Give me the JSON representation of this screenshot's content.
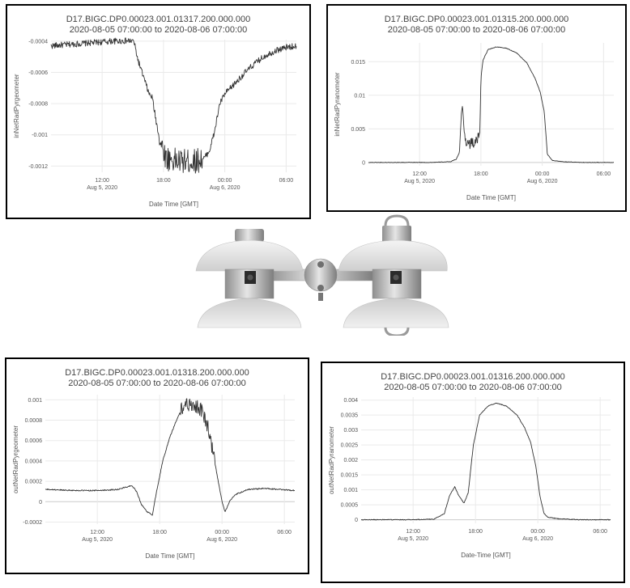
{
  "chart_data": [
    {
      "id": "a",
      "type": "line",
      "title": "D17.BIGC.DP0.00023.001.01317.200.000.000",
      "subtitle": "2020-08-05 07:00:00 to 2020-08-06 07:00:00",
      "xlabel": "Date Time [GMT]",
      "ylabel": "inNetRadPyrgeometer",
      "xlim": [
        7,
        31
      ],
      "ylim": [
        -0.00124,
        -0.00039
      ],
      "grid": true,
      "noise": 2e-05,
      "bigNoise": [
        [
          17.6,
          21.8,
          8e-05
        ]
      ],
      "x_ticks": [
        {
          "v": 12,
          "l1": "12:00",
          "l2": "Aug 5, 2020"
        },
        {
          "v": 18,
          "l1": "18:00",
          "l2": ""
        },
        {
          "v": 24,
          "l1": "00:00",
          "l2": "Aug 6, 2020"
        },
        {
          "v": 30,
          "l1": "06:00",
          "l2": ""
        }
      ],
      "y_ticks": [
        {
          "v": -0.0004,
          "l": "-0.0004"
        },
        {
          "v": -0.0006,
          "l": "-0.0006"
        },
        {
          "v": -0.0008,
          "l": "-0.0008"
        },
        {
          "v": -0.001,
          "l": "-0.001"
        },
        {
          "v": -0.0012,
          "l": "-0.0012"
        }
      ],
      "series": [
        {
          "x": [
            7,
            9,
            11,
            13,
            14.5,
            15.1,
            15.5,
            16,
            16.6,
            16.9,
            17.3,
            17.7,
            18.3,
            19.5,
            21,
            22,
            22.5,
            23,
            23.5,
            24,
            25,
            26,
            27,
            28,
            29,
            30,
            31
          ],
          "y": [
            -0.00043,
            -0.00042,
            -0.00041,
            -0.0004,
            -0.000398,
            -0.0004,
            -0.00052,
            -0.00062,
            -0.00074,
            -0.00076,
            -0.00092,
            -0.00105,
            -0.00115,
            -0.00117,
            -0.00117,
            -0.00115,
            -0.0011,
            -0.00098,
            -0.0008,
            -0.00074,
            -0.00067,
            -0.0006,
            -0.00054,
            -0.00049,
            -0.00046,
            -0.00044,
            -0.00043
          ]
        }
      ]
    },
    {
      "id": "b",
      "type": "line",
      "title": "D17.BIGC.DP0.00023.001.01315.200.000.000",
      "subtitle": "2020-08-05 07:00:00 to 2020-08-06 07:00:00",
      "xlabel": "Date Time [GMT]",
      "ylabel": "inNetRadPyranometer",
      "xlim": [
        7,
        31
      ],
      "ylim": [
        -0.0005,
        0.0178
      ],
      "grid": true,
      "noise": 4e-05,
      "bigNoise": [
        [
          16.3,
          17.8,
          0.0008
        ]
      ],
      "x_ticks": [
        {
          "v": 12,
          "l1": "12:00",
          "l2": "Aug 5, 2020"
        },
        {
          "v": 18,
          "l1": "18:00",
          "l2": ""
        },
        {
          "v": 24,
          "l1": "00:00",
          "l2": "Aug 6, 2020"
        },
        {
          "v": 30,
          "l1": "06:00",
          "l2": ""
        }
      ],
      "y_ticks": [
        {
          "v": 0,
          "l": "0"
        },
        {
          "v": 0.005,
          "l": "0.005"
        },
        {
          "v": 0.01,
          "l": "0.01"
        },
        {
          "v": 0.015,
          "l": "0.015"
        }
      ],
      "series": [
        {
          "x": [
            7,
            13,
            15,
            15.6,
            15.9,
            16.1,
            16.2,
            16.4,
            16.6,
            17,
            17.5,
            17.7,
            17.9,
            18,
            18.2,
            18.7,
            19.5,
            20.5,
            21.5,
            22.5,
            23.3,
            23.8,
            24.2,
            24.5,
            25,
            26,
            28,
            31
          ],
          "y": [
            0,
            0,
            0.0001,
            0.0005,
            0.0015,
            0.0075,
            0.0085,
            0.004,
            0.003,
            0.0028,
            0.003,
            0.0035,
            0.0045,
            0.0125,
            0.0152,
            0.0168,
            0.0172,
            0.017,
            0.0163,
            0.0148,
            0.0125,
            0.0105,
            0.0075,
            0.0012,
            0.0003,
            0.0001,
            0,
            0
          ]
        }
      ]
    },
    {
      "id": "c",
      "type": "line",
      "title": "D17.BIGC.DP0.00023.001.01318.200.000.000",
      "subtitle": "2020-08-05 07:00:00 to 2020-08-06 07:00:00",
      "xlabel": "Date Time [GMT]",
      "ylabel": "outNetRadPyrgeometer",
      "xlim": [
        7,
        31
      ],
      "ylim": [
        -0.00022,
        0.00105
      ],
      "grid": true,
      "noise": 6e-06,
      "bigNoise": [
        [
          20,
          23.3,
          7e-05
        ]
      ],
      "x_ticks": [
        {
          "v": 12,
          "l1": "12:00",
          "l2": "Aug 5, 2020"
        },
        {
          "v": 18,
          "l1": "18:00",
          "l2": ""
        },
        {
          "v": 24,
          "l1": "00:00",
          "l2": "Aug 6, 2020"
        },
        {
          "v": 30,
          "l1": "06:00",
          "l2": ""
        }
      ],
      "y_ticks": [
        {
          "v": -0.0002,
          "l": "-0.0002"
        },
        {
          "v": 0,
          "l": "0"
        },
        {
          "v": 0.0002,
          "l": "0.0002"
        },
        {
          "v": 0.0004,
          "l": "0.0004"
        },
        {
          "v": 0.0006,
          "l": "0.0006"
        },
        {
          "v": 0.0008,
          "l": "0.0008"
        },
        {
          "v": 0.001,
          "l": "0.001"
        }
      ],
      "series": [
        {
          "x": [
            7,
            10,
            12,
            14,
            15.3,
            15.8,
            16.2,
            16.8,
            17.3,
            17.7,
            18.3,
            19,
            19.7,
            20.4,
            21.3,
            22,
            22.6,
            23.1,
            23.6,
            24,
            24.3,
            24.7,
            25.3,
            26.5,
            28,
            31
          ],
          "y": [
            0.00012,
            0.00011,
            0.00011,
            0.00012,
            0.00016,
            0.0001,
            -2e-05,
            -0.0001,
            -0.00013,
            0.0001,
            0.0004,
            0.00064,
            0.00082,
            0.00096,
            0.00095,
            0.0009,
            0.00075,
            0.0005,
            0.00022,
            0,
            -0.0001,
            0,
            7e-05,
            0.00012,
            0.00013,
            0.00011
          ]
        }
      ]
    },
    {
      "id": "d",
      "type": "line",
      "title": "D17.BIGC.DP0.00023.001.01316.200.000.000",
      "subtitle": "2020-08-05 07:00:00 to 2020-08-06 07:00:00",
      "xlabel": "Date-Time [GMT]",
      "ylabel": "outNetRadPyranometer",
      "xlim": [
        7,
        31
      ],
      "ylim": [
        -0.00012,
        0.0041
      ],
      "grid": true,
      "noise": 1.2e-05,
      "bigNoise": [],
      "x_ticks": [
        {
          "v": 12,
          "l1": "12:00",
          "l2": "Aug 5, 2020"
        },
        {
          "v": 18,
          "l1": "18:00",
          "l2": ""
        },
        {
          "v": 24,
          "l1": "00:00",
          "l2": "Aug 6, 2020"
        },
        {
          "v": 30,
          "l1": "06:00",
          "l2": ""
        }
      ],
      "y_ticks": [
        {
          "v": 0,
          "l": "0"
        },
        {
          "v": 0.0005,
          "l": "0.0005"
        },
        {
          "v": 0.001,
          "l": "0.001"
        },
        {
          "v": 0.0015,
          "l": "0.0015"
        },
        {
          "v": 0.002,
          "l": "0.002"
        },
        {
          "v": 0.0025,
          "l": "0.0025"
        },
        {
          "v": 0.003,
          "l": "0.003"
        },
        {
          "v": 0.0035,
          "l": "0.0035"
        },
        {
          "v": 0.004,
          "l": "0.004"
        }
      ],
      "series": [
        {
          "x": [
            7,
            12,
            14,
            15,
            15.5,
            16,
            16.4,
            16.9,
            17.3,
            17.8,
            18.4,
            19.2,
            20,
            21,
            22,
            22.7,
            23.3,
            23.8,
            24.2,
            24.6,
            25,
            26,
            28,
            31
          ],
          "y": [
            0,
            0,
            2e-05,
            0.0002,
            0.0008,
            0.0011,
            0.0008,
            0.00055,
            0.0009,
            0.0025,
            0.0035,
            0.0038,
            0.0039,
            0.0038,
            0.0035,
            0.0031,
            0.0026,
            0.0018,
            0.0008,
            0.0002,
            8e-05,
            3e-05,
            0,
            0
          ]
        }
      ]
    }
  ],
  "photo": {
    "label": "net radiometer sensor"
  }
}
